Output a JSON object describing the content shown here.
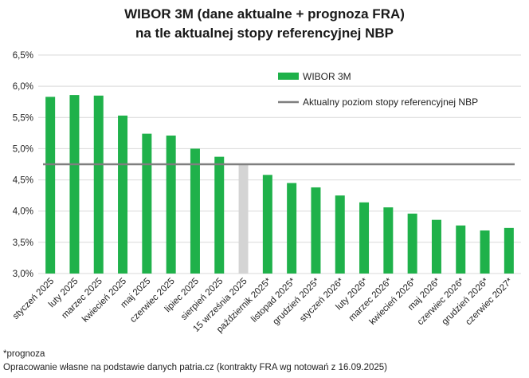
{
  "title_line1": "WIBOR 3M (dane aktualne + prognoza FRA)",
  "title_line2": "na tle aktualnej stopy referencyjnej NBP",
  "footnote": "*prognoza",
  "source": "Opracowanie własne na podstawie danych patria.cz (kontrakty FRA wg notowań z 16.09.2025)",
  "chart_data": {
    "type": "bar",
    "categories": [
      "styczeń 2025",
      "luty 2025",
      "marzec 2025",
      "kwiecień 2025",
      "maj 2025",
      "czerwiec 2025",
      "lipiec 2025",
      "sierpień 2025",
      "15 września 2025",
      "październik 2025*",
      "listopad 2025*",
      "grudzień 2025*",
      "styczeń 2026*",
      "luty 2026*",
      "marzec 2026*",
      "kwiecień 2026*",
      "maj 2026*",
      "czerwiec 2026*",
      "grudzień 2026*",
      "czerwiec 2027*"
    ],
    "values": [
      5.83,
      5.86,
      5.85,
      5.53,
      5.24,
      5.21,
      5.0,
      4.87,
      4.75,
      4.58,
      4.45,
      4.38,
      4.25,
      4.14,
      4.06,
      3.96,
      3.86,
      3.77,
      3.69,
      3.73
    ],
    "bar_colors": [
      "#1fb14a",
      "#1fb14a",
      "#1fb14a",
      "#1fb14a",
      "#1fb14a",
      "#1fb14a",
      "#1fb14a",
      "#1fb14a",
      "#d4d4d4",
      "#1fb14a",
      "#1fb14a",
      "#1fb14a",
      "#1fb14a",
      "#1fb14a",
      "#1fb14a",
      "#1fb14a",
      "#1fb14a",
      "#1fb14a",
      "#1fb14a",
      "#1fb14a"
    ],
    "series": [
      {
        "name": "WIBOR 3M",
        "color": "#1fb14a"
      },
      {
        "name": "Aktualny poziom stopy referencyjnej NBP",
        "color": "#7f7f7f",
        "value": 4.75
      }
    ],
    "ylim": [
      3.0,
      6.5
    ],
    "yticks": [
      "3,0%",
      "3,5%",
      "4,0%",
      "4,5%",
      "5,0%",
      "5,5%",
      "6,0%",
      "6,5%"
    ],
    "grid": true,
    "legend_position": "top-right"
  }
}
